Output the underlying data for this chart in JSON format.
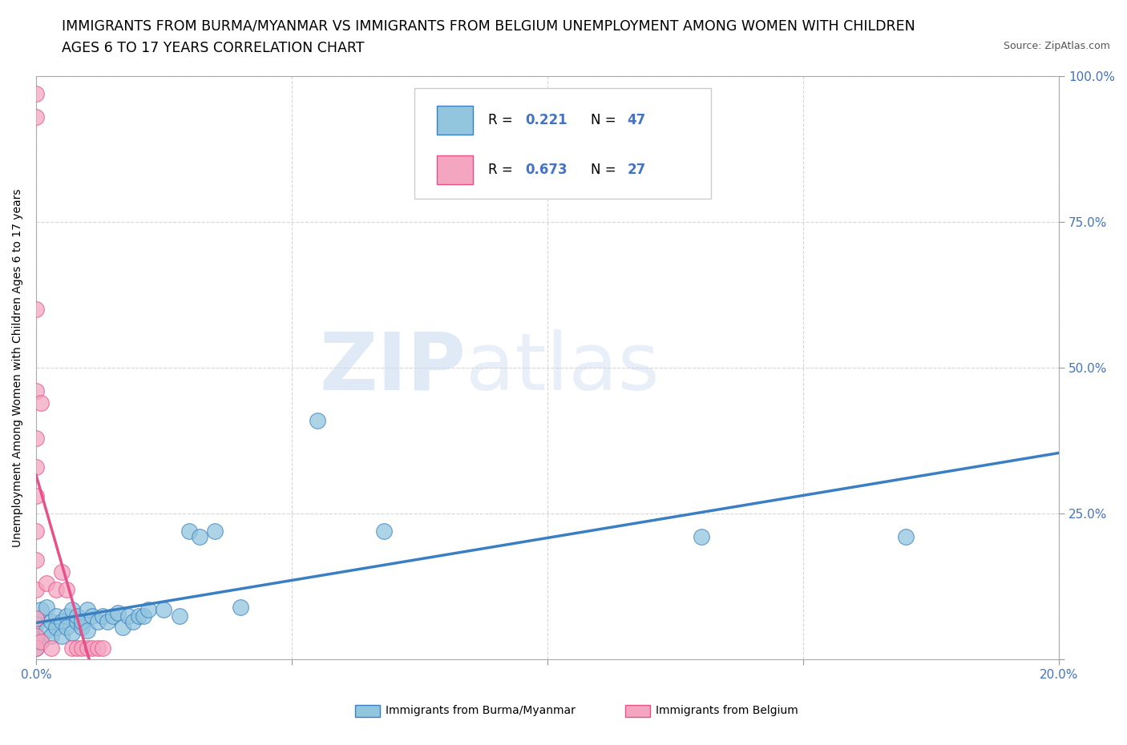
{
  "title_line1": "IMMIGRANTS FROM BURMA/MYANMAR VS IMMIGRANTS FROM BELGIUM UNEMPLOYMENT AMONG WOMEN WITH CHILDREN",
  "title_line2": "AGES 6 TO 17 YEARS CORRELATION CHART",
  "source_text": "Source: ZipAtlas.com",
  "ylabel": "Unemployment Among Women with Children Ages 6 to 17 years",
  "watermark_zip": "ZIP",
  "watermark_atlas": "atlas",
  "xlim": [
    0.0,
    0.2
  ],
  "ylim": [
    0.0,
    1.0
  ],
  "xtick_positions": [
    0.0,
    0.05,
    0.1,
    0.15,
    0.2
  ],
  "xtick_labels": [
    "0.0%",
    "",
    "",
    "",
    "20.0%"
  ],
  "ytick_positions": [
    0.0,
    0.25,
    0.5,
    0.75,
    1.0
  ],
  "ytick_labels": [
    "",
    "25.0%",
    "50.0%",
    "75.0%",
    "100.0%"
  ],
  "legend_R1": "0.221",
  "legend_N1": "47",
  "legend_R2": "0.673",
  "legend_N2": "27",
  "color_burma": "#92C5DE",
  "color_belgium": "#F4A6C0",
  "trendline_color_burma": "#3A7FC1",
  "trendline_color_belgium": "#E8508A",
  "bg_color": "#FFFFFF",
  "grid_color": "#CCCCCC",
  "title_fontsize": 12.5,
  "axis_label_fontsize": 10,
  "tick_fontsize": 11,
  "tick_color": "#4472C4",
  "burma_x": [
    0.0,
    0.0,
    0.0,
    0.0,
    0.0,
    0.001,
    0.001,
    0.002,
    0.002,
    0.003,
    0.003,
    0.004,
    0.004,
    0.005,
    0.005,
    0.006,
    0.006,
    0.007,
    0.007,
    0.008,
    0.008,
    0.009,
    0.009,
    0.01,
    0.01,
    0.011,
    0.012,
    0.013,
    0.014,
    0.015,
    0.016,
    0.017,
    0.018,
    0.019,
    0.02,
    0.021,
    0.022,
    0.025,
    0.028,
    0.03,
    0.032,
    0.035,
    0.04,
    0.055,
    0.068,
    0.13,
    0.17
  ],
  "burma_y": [
    0.04,
    0.06,
    0.02,
    0.07,
    0.035,
    0.03,
    0.085,
    0.05,
    0.09,
    0.04,
    0.065,
    0.055,
    0.075,
    0.065,
    0.04,
    0.075,
    0.055,
    0.085,
    0.045,
    0.065,
    0.075,
    0.055,
    0.065,
    0.085,
    0.05,
    0.075,
    0.065,
    0.075,
    0.065,
    0.075,
    0.08,
    0.055,
    0.075,
    0.065,
    0.075,
    0.075,
    0.085,
    0.085,
    0.075,
    0.22,
    0.21,
    0.22,
    0.09,
    0.41,
    0.22,
    0.21,
    0.21
  ],
  "belgium_x": [
    0.0,
    0.0,
    0.0,
    0.0,
    0.0,
    0.0,
    0.0,
    0.0,
    0.0,
    0.0,
    0.0,
    0.0,
    0.0,
    0.001,
    0.001,
    0.002,
    0.003,
    0.004,
    0.005,
    0.006,
    0.007,
    0.008,
    0.009,
    0.01,
    0.011,
    0.012,
    0.013
  ],
  "belgium_y": [
    0.97,
    0.93,
    0.6,
    0.46,
    0.38,
    0.33,
    0.28,
    0.22,
    0.17,
    0.12,
    0.07,
    0.04,
    0.02,
    0.44,
    0.03,
    0.13,
    0.02,
    0.12,
    0.15,
    0.12,
    0.02,
    0.02,
    0.02,
    0.02,
    0.02,
    0.02,
    0.02
  ]
}
